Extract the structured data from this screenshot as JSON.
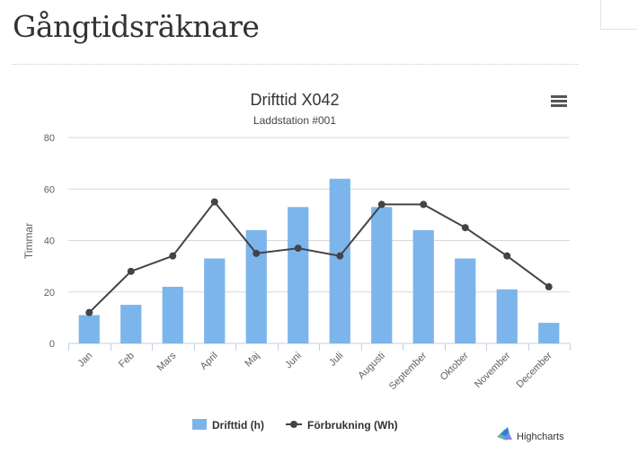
{
  "page": {
    "title": "Gångtidsräknare"
  },
  "menu_icon": "hamburger-menu-icon",
  "credits": {
    "text": "Highcharts",
    "icon": "highcharts-logo-icon"
  },
  "colors": {
    "bar": "#7cb5ec",
    "line": "#434348",
    "grid": "#d8d8d8",
    "text": "#333333",
    "axis_text": "#606060"
  },
  "chart_data": {
    "type": "bar+line",
    "title": "Drifttid X042",
    "subtitle": "Laddstation #001",
    "ylabel": "Timmar",
    "xlabel": "",
    "ylim": [
      0,
      80
    ],
    "yticks": [
      0,
      20,
      40,
      60,
      80
    ],
    "grid": true,
    "legend_position": "bottom-center",
    "categories": [
      "Jan",
      "Feb",
      "Mars",
      "April",
      "Maj",
      "Juni",
      "Juli",
      "Augusti",
      "September",
      "Oktober",
      "November",
      "December"
    ],
    "series": [
      {
        "name": "Drifttid (h)",
        "kind": "bar",
        "values": [
          11,
          15,
          22,
          33,
          44,
          53,
          64,
          53,
          44,
          33,
          21,
          8
        ]
      },
      {
        "name": "Förbrukning (Wh)",
        "kind": "line",
        "values": [
          12,
          28,
          34,
          55,
          35,
          37,
          34,
          54,
          54,
          45,
          34,
          22
        ]
      }
    ]
  }
}
